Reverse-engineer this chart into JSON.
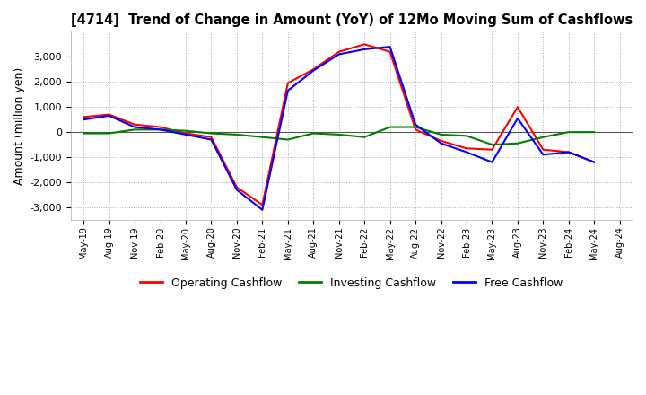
{
  "title": "[4714]  Trend of Change in Amount (YoY) of 12Mo Moving Sum of Cashflows",
  "ylabel": "Amount (million yen)",
  "ylim": [
    -3500,
    4000
  ],
  "yticks": [
    -3000,
    -2000,
    -1000,
    0,
    1000,
    2000,
    3000
  ],
  "background_color": "#ffffff",
  "grid_color": "#aaaaaa",
  "legend_labels": [
    "Operating Cashflow",
    "Investing Cashflow",
    "Free Cashflow"
  ],
  "line_colors": [
    "#ff0000",
    "#008000",
    "#0000ff"
  ],
  "dates": [
    "May-19",
    "Aug-19",
    "Nov-19",
    "Feb-20",
    "May-20",
    "Aug-20",
    "Nov-20",
    "Feb-21",
    "May-21",
    "Aug-21",
    "Nov-21",
    "Feb-22",
    "May-22",
    "Aug-22",
    "Nov-22",
    "Feb-23",
    "May-23",
    "Aug-23",
    "Nov-23",
    "Feb-24",
    "May-24",
    "Aug-24"
  ],
  "operating": [
    600,
    700,
    300,
    200,
    -50,
    -200,
    -2200,
    -2900,
    1950,
    2500,
    3200,
    3500,
    3200,
    100,
    -350,
    -650,
    -700,
    1000,
    -700,
    -800,
    -1200,
    null
  ],
  "investing": [
    -50,
    -50,
    100,
    100,
    50,
    -50,
    -100,
    -200,
    -300,
    -50,
    -100,
    -200,
    200,
    200,
    -100,
    -150,
    -500,
    -450,
    -200,
    0,
    0,
    null
  ],
  "free": [
    500,
    650,
    200,
    100,
    -100,
    -300,
    -2300,
    -3100,
    1650,
    2450,
    3100,
    3300,
    3400,
    300,
    -450,
    -800,
    -1200,
    550,
    -900,
    -800,
    -1200,
    null
  ]
}
